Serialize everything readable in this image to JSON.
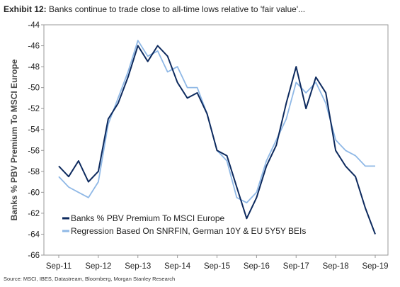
{
  "header": {
    "exhibit_label": "Exhibit 12:",
    "title_text": "Banks continue to trade close to all-time lows relative to 'fair value'..."
  },
  "footer": {
    "source": "Source: MSCI, IBES, Datastream, Bloomberg, Morgan Stanley Research"
  },
  "colors": {
    "series_dark": "#0d2a5e",
    "series_light": "#8fb8e6",
    "axis": "#999999"
  },
  "chart_data": {
    "type": "line",
    "title": "Banks continue to trade close to all-time lows relative to 'fair value'...",
    "ylabel": "Banks % PBV Premium To MSCI Europe",
    "xlabel": "",
    "ylim": [
      -66,
      -44
    ],
    "yticks": [
      -44,
      -46,
      -48,
      -50,
      -52,
      -54,
      -56,
      -58,
      -60,
      -62,
      -64,
      -66
    ],
    "xticks": [
      "Sep-11",
      "Sep-12",
      "Sep-13",
      "Sep-14",
      "Sep-15",
      "Sep-16",
      "Sep-17",
      "Sep-18",
      "Sep-19"
    ],
    "grid": false,
    "legend_position": "bottom-left",
    "x_dates": [
      "Sep-11",
      "Dec-11",
      "Mar-12",
      "Jun-12",
      "Sep-12",
      "Dec-12",
      "Mar-13",
      "Jun-13",
      "Sep-13",
      "Dec-13",
      "Mar-14",
      "Jun-14",
      "Sep-14",
      "Dec-14",
      "Mar-15",
      "Jun-15",
      "Sep-15",
      "Dec-15",
      "Mar-16",
      "Jun-16",
      "Sep-16",
      "Dec-16",
      "Mar-17",
      "Jun-17",
      "Sep-17",
      "Dec-17",
      "Mar-18",
      "Jun-18",
      "Sep-18",
      "Dec-18",
      "Mar-19",
      "Jun-19",
      "Sep-19"
    ],
    "series": [
      {
        "name": "Banks % PBV Premium To MSCI Europe",
        "values": [
          -57.5,
          -58.5,
          -57.0,
          -59.0,
          -58.0,
          -53.0,
          -51.5,
          -49.0,
          -46.0,
          -47.5,
          -46.0,
          -47.0,
          -49.5,
          -51.0,
          -50.5,
          -52.5,
          -56.0,
          -56.5,
          -59.5,
          -62.5,
          -60.5,
          -57.5,
          -55.5,
          -51.5,
          -48.0,
          -52.0,
          -49.0,
          -50.5,
          -56.0,
          -57.5,
          -58.5,
          -61.5,
          -64.0
        ]
      },
      {
        "name": "Regression Based On SNRFIN, German 10Y & EU 5Y5Y BEIs",
        "values": [
          -58.5,
          -59.5,
          -60.0,
          -60.5,
          -59.0,
          -53.5,
          -51.0,
          -48.5,
          -45.5,
          -47.0,
          -46.5,
          -48.5,
          -48.0,
          -50.0,
          -50.0,
          -52.5,
          -56.0,
          -57.0,
          -60.5,
          -61.0,
          -60.0,
          -57.0,
          -55.0,
          -53.0,
          -49.5,
          -50.5,
          -49.5,
          -51.5,
          -55.0,
          -56.0,
          -56.5,
          -57.5,
          -57.5
        ]
      }
    ]
  }
}
